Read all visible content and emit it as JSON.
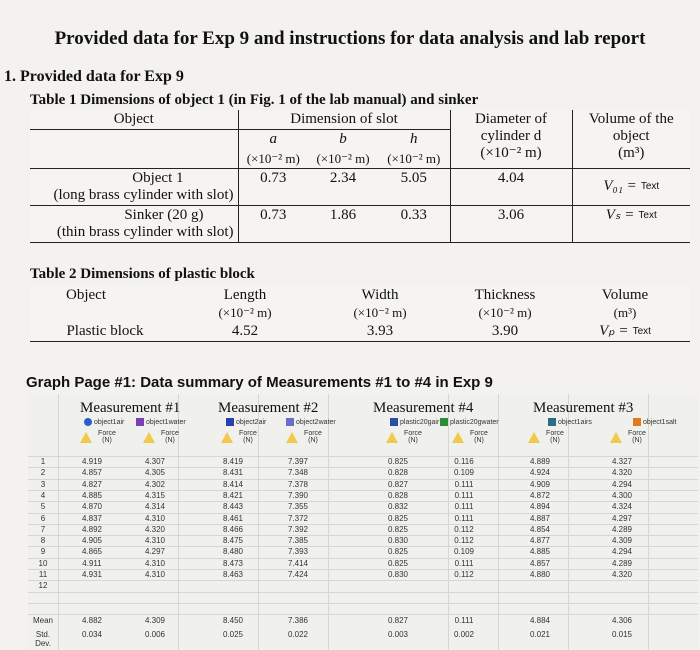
{
  "title": "Provided data for Exp 9 and instructions for data analysis and lab report",
  "section1": "1.  Provided data for Exp 9",
  "table1": {
    "caption": "Table 1 Dimensions of object 1 (in Fig. 1 of the lab manual) and sinker",
    "h_object": "Object",
    "h_dim": "Dimension of slot",
    "h_diam": "Diameter of",
    "h_diam2": "cylinder d",
    "h_diam_unit": "(×10⁻² m)",
    "h_vol": "Volume of the",
    "h_vol2": "object",
    "h_vol_unit": "(m³)",
    "h_a": "a",
    "h_b": "b",
    "h_h": "h",
    "unit": "(×10⁻² m)",
    "rows": [
      {
        "name": "Object 1",
        "desc": "(long brass cylinder with slot)",
        "a": "0.73",
        "b": "2.34",
        "h": "5.05",
        "d": "4.04",
        "v": "V₀₁ =",
        "t": "Text"
      },
      {
        "name": "Sinker (20 g)",
        "desc": "(thin brass cylinder with slot)",
        "a": "0.73",
        "b": "1.86",
        "h": "0.33",
        "d": "3.06",
        "v": "Vₛ =",
        "t": "Text"
      }
    ]
  },
  "table2": {
    "caption": "Table 2 Dimensions of plastic block",
    "h_object": "Object",
    "h_length": "Length",
    "h_width": "Width",
    "h_thick": "Thickness",
    "h_vol": "Volume",
    "unit": "(×10⁻² m)",
    "vol_unit": "(m³)",
    "row": {
      "name": "Plastic block",
      "length": "4.52",
      "width": "3.93",
      "thick": "3.90",
      "v": "Vₚ =",
      "t": "Text"
    }
  },
  "graph": {
    "title": "Graph Page #1:  Data summary of Measurements #1 to #4 in Exp 9",
    "groups": [
      {
        "label": "Measurement #1",
        "s1": "object1air",
        "s2": "object1water"
      },
      {
        "label": "Measurement #2",
        "s1": "object2air",
        "s2": "object2water"
      },
      {
        "label": "Measurement #4",
        "s1": "plastic20gair",
        "s2": "plastic20gwater"
      },
      {
        "label": "Measurement #3",
        "s1": "object1airs",
        "s2": "object1salt"
      }
    ],
    "force": "Force",
    "unit": "(N)",
    "rownums": [
      "1",
      "2",
      "3",
      "4",
      "5",
      "6",
      "7",
      "8",
      "9",
      "10",
      "11",
      "12"
    ],
    "columns": [
      [
        "4.919",
        "4.857",
        "4.827",
        "4.885",
        "4.870",
        "4.837",
        "4.892",
        "4.905",
        "4.865",
        "4.911",
        "4.931"
      ],
      [
        "4.307",
        "4.305",
        "4.302",
        "4.315",
        "4.314",
        "4.310",
        "4.320",
        "4.310",
        "4.297",
        "4.310",
        "4.310"
      ],
      [
        "8.419",
        "8.431",
        "8.414",
        "8.421",
        "8.443",
        "8.461",
        "8.466",
        "8.475",
        "8.480",
        "8.473",
        "8.463"
      ],
      [
        "7.397",
        "7.348",
        "7.378",
        "7.390",
        "7.355",
        "7.372",
        "7.392",
        "7.385",
        "7.393",
        "7.414",
        "7.424"
      ],
      [
        "0.825",
        "0.828",
        "0.827",
        "0.828",
        "0.832",
        "0.825",
        "0.825",
        "0.830",
        "0.825",
        "0.825",
        "0.830"
      ],
      [
        "0.116",
        "0.109",
        "0.111",
        "0.111",
        "0.111",
        "0.111",
        "0.112",
        "0.112",
        "0.109",
        "0.111",
        "0.112"
      ],
      [
        "4.889",
        "4.924",
        "4.909",
        "4.872",
        "4.894",
        "4.887",
        "4.854",
        "4.877",
        "4.885",
        "4.857",
        "4.880"
      ],
      [
        "4.327",
        "4.320",
        "4.294",
        "4.300",
        "4.324",
        "4.297",
        "4.289",
        "4.309",
        "4.294",
        "4.289",
        "4.320"
      ]
    ],
    "mean_label": "Mean",
    "std_label": "Std. Dev.",
    "means": [
      "4.882",
      "4.309",
      "8.450",
      "7.386",
      "0.827",
      "0.111",
      "4.884",
      "4.306"
    ],
    "stds": [
      "0.034",
      "0.006",
      "0.025",
      "0.022",
      "0.003",
      "0.002",
      "0.021",
      "0.015"
    ]
  }
}
